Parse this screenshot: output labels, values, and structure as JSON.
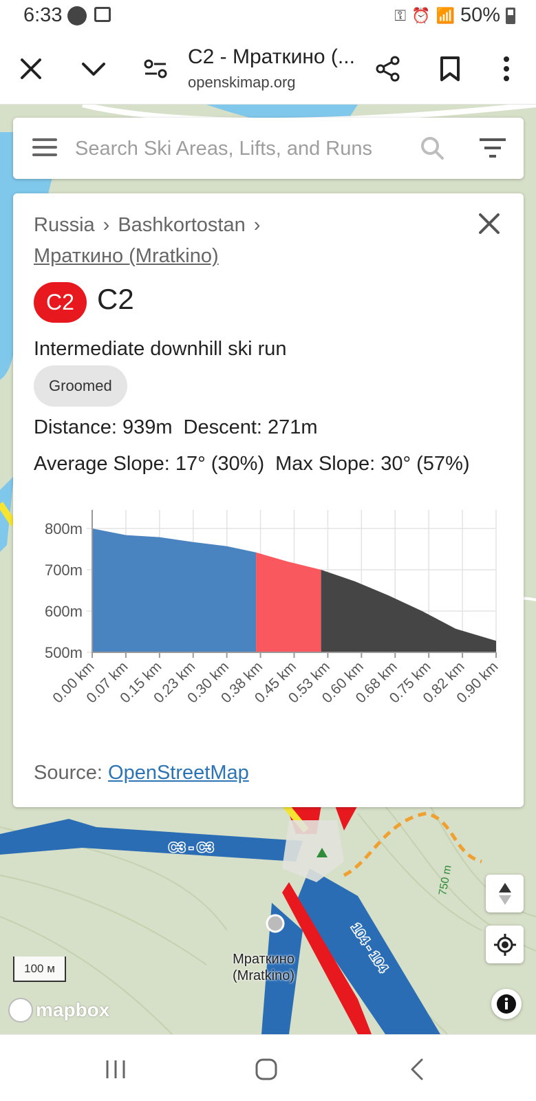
{
  "status": {
    "time": "6:33",
    "battery": "50%"
  },
  "browser": {
    "title": "C2 - Мраткино (...",
    "url": "openskimap.org",
    "icons": [
      "close-icon",
      "chevron-down-icon",
      "page-settings-icon",
      "share-icon",
      "bookmark-icon",
      "more-vert-icon"
    ]
  },
  "search": {
    "placeholder": "Search Ski Areas, Lifts, and Runs"
  },
  "panel": {
    "breadcrumb": [
      "Russia",
      "Bashkortostan"
    ],
    "breadcrumb_sep": "›",
    "ski_area": "Мраткино (Mratkino)",
    "run_ref": "C2",
    "run_name": "C2",
    "description": "Intermediate downhill ski run",
    "chip": "Groomed",
    "distance": "Distance: 939m",
    "descent": "Descent: 271m",
    "avg_slope": "Average Slope: 17° (30%)",
    "max_slope": "Max Slope: 30° (57%)",
    "source_label": "Source:",
    "source_link": "OpenStreetMap"
  },
  "chart_data": {
    "type": "area",
    "title": "",
    "xlabel": "",
    "ylabel": "",
    "x_tick_labels": [
      "0.00 km",
      "0.07 km",
      "0.15 km",
      "0.23 km",
      "0.30 km",
      "0.38 km",
      "0.45 km",
      "0.53 km",
      "0.60 km",
      "0.68 km",
      "0.75 km",
      "0.82 km",
      "0.90 km"
    ],
    "y_tick_labels": [
      "800m",
      "700m",
      "600m",
      "500m"
    ],
    "y_ticks": [
      800,
      700,
      600,
      500
    ],
    "ylim": [
      500,
      800
    ],
    "xlim": [
      0,
      0.9
    ],
    "grid": true,
    "x": [
      0.0,
      0.075,
      0.15,
      0.225,
      0.3,
      0.365,
      0.435,
      0.51,
      0.585,
      0.66,
      0.735,
      0.81,
      0.9
    ],
    "elevation_m": [
      800,
      784,
      779,
      767,
      757,
      742,
      720,
      700,
      672,
      638,
      600,
      557,
      528
    ],
    "segments": [
      {
        "from": 0.0,
        "to": 0.365,
        "color": "#4a84c0"
      },
      {
        "from": 0.365,
        "to": 0.51,
        "color": "#f9585e"
      },
      {
        "from": 0.51,
        "to": 0.9,
        "color": "#454545"
      }
    ]
  },
  "map": {
    "labels": {
      "run_c3": "C3 - C3",
      "run_104": "104 - 104",
      "contour": "750 m",
      "place": "Мраткино\n(Mratkino)",
      "scale": "100 м",
      "attribution": "mapbox"
    },
    "controls": [
      "compass-icon",
      "locate-icon",
      "info-icon"
    ]
  },
  "colors": {
    "accent": "#2c74b3",
    "run_red": "#e8191e",
    "map_bg": "#d6dfc7",
    "water": "#7fc7eb",
    "piste_blue": "#2a6db5"
  }
}
